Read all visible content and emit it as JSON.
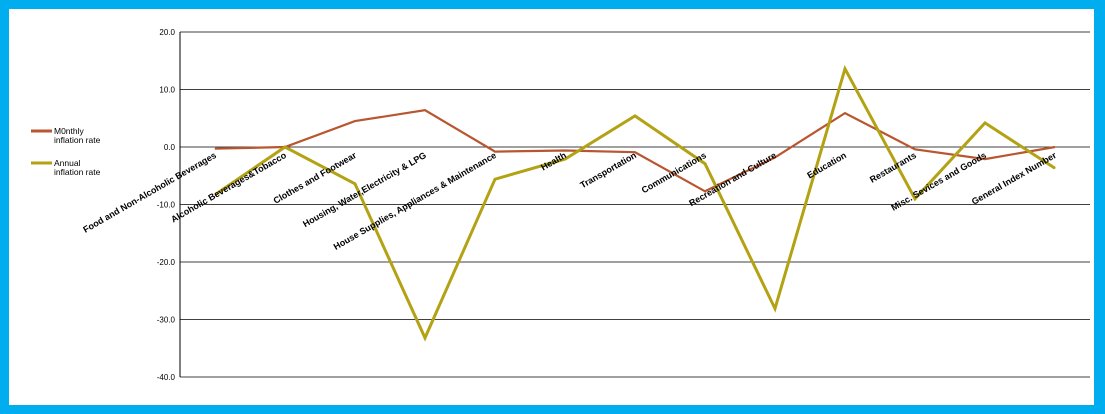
{
  "chart_data": {
    "type": "line",
    "title": "",
    "xlabel": "",
    "ylabel": "",
    "ylim": [
      -40,
      20
    ],
    "yticks": [
      20,
      10,
      0,
      -10,
      -20,
      -30,
      -40
    ],
    "ytick_labels": [
      "20.0",
      "10.0",
      "0.0",
      "-10.0",
      "-20.0",
      "-30.0",
      "-40.0"
    ],
    "grid": true,
    "legend_position": "left",
    "categories": [
      "Food and Non-Alcoholic Beverages",
      "Alcoholic Beverages&Tobacco",
      "Clothes and Footwear",
      "Housing, Water,Electricity & LPG",
      "House Supplies, Appliances & Maintenance",
      "Health",
      "Transportation",
      "Communications",
      "Recreation and Culture",
      "Education",
      "Restaurants",
      "Misc. Sevices and Goods",
      "General Index Number"
    ],
    "series": [
      {
        "name": "M0nthly inflation rate",
        "name_lines": [
          "M0nthly",
          "inflation rate"
        ],
        "color": "#B8562F",
        "values": [
          -0.3,
          0.0,
          4.5,
          6.4,
          -0.8,
          -0.6,
          -0.9,
          -7.7,
          -1.8,
          5.9,
          -0.4,
          -2.1,
          0.0
        ]
      },
      {
        "name": "Annual inflation rate",
        "name_lines": [
          "Annual",
          "inflation rate"
        ],
        "color": "#B3A213",
        "values": [
          -8.3,
          0.0,
          -6.4,
          -33.2,
          -5.6,
          -2.1,
          5.4,
          -2.9,
          -28.1,
          13.6,
          -9.0,
          4.2,
          -3.7
        ]
      }
    ]
  }
}
